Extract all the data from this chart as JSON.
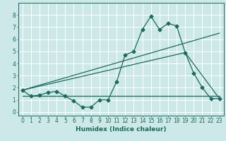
{
  "title": "",
  "xlabel": "Humidex (Indice chaleur)",
  "ylabel": "",
  "bg_color": "#cce8e8",
  "grid_color": "#ffffff",
  "line_color": "#1a6b5e",
  "xlim": [
    -0.5,
    23.5
  ],
  "ylim": [
    -0.3,
    9.0
  ],
  "xticks": [
    0,
    1,
    2,
    3,
    4,
    5,
    6,
    7,
    8,
    9,
    10,
    11,
    12,
    13,
    14,
    15,
    16,
    17,
    18,
    19,
    20,
    21,
    22,
    23
  ],
  "yticks": [
    0,
    1,
    2,
    3,
    4,
    5,
    6,
    7,
    8
  ],
  "line1_x": [
    0,
    1,
    2,
    3,
    4,
    5,
    6,
    7,
    8,
    9,
    10,
    11,
    12,
    13,
    14,
    15,
    16,
    17,
    18,
    19,
    20,
    21,
    22,
    23
  ],
  "line1_y": [
    1.8,
    1.3,
    1.4,
    1.6,
    1.7,
    1.3,
    0.9,
    0.4,
    0.4,
    1.0,
    1.0,
    2.5,
    4.7,
    5.0,
    6.8,
    7.9,
    6.8,
    7.3,
    7.1,
    4.9,
    3.2,
    2.0,
    1.1,
    1.1
  ],
  "line2_x": [
    0,
    23
  ],
  "line2_y": [
    1.8,
    6.5
  ],
  "line3_x": [
    0,
    19,
    23
  ],
  "line3_y": [
    1.8,
    4.9,
    1.1
  ],
  "line4_x": [
    0,
    23
  ],
  "line4_y": [
    1.3,
    1.3
  ],
  "marker": "D",
  "markersize": 2.5,
  "linewidth": 0.9,
  "label_fontsize": 6.5,
  "tick_fontsize": 5.5
}
